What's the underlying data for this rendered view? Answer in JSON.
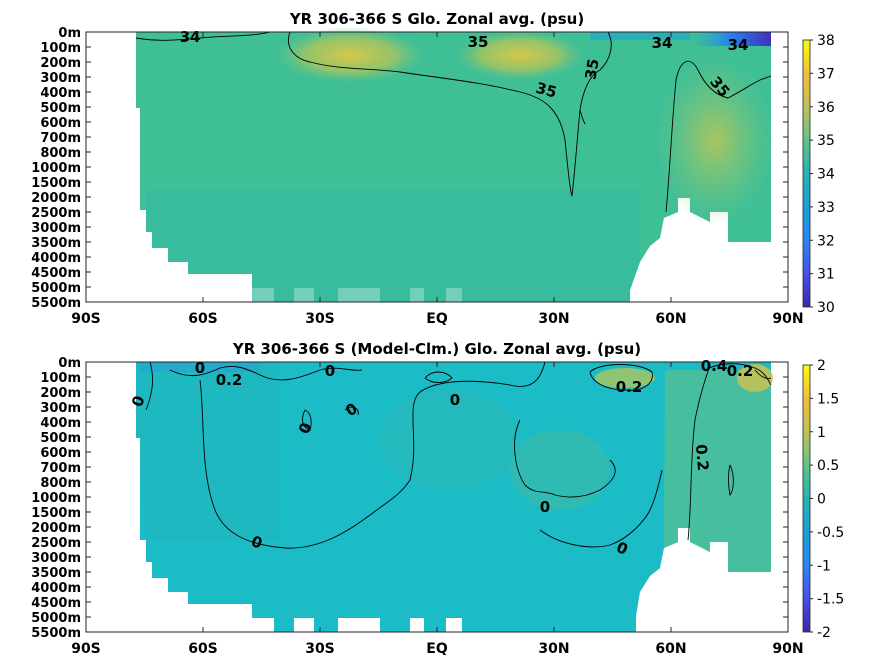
{
  "chart_data": [
    {
      "type": "heatmap",
      "title": "YR 306-366 S Glo. Zonal avg. (psu)",
      "x_ticks": [
        "90S",
        "60S",
        "30S",
        "EQ",
        "30N",
        "60N",
        "90N"
      ],
      "y_ticks": [
        "0m",
        "100m",
        "200m",
        "300m",
        "400m",
        "500m",
        "600m",
        "700m",
        "800m",
        "1000m",
        "1500m",
        "2000m",
        "2500m",
        "3000m",
        "3500m",
        "4000m",
        "4500m",
        "5000m",
        "5500m"
      ],
      "colorbar": {
        "min": 30,
        "max": 38,
        "ticks": [
          "30",
          "31",
          "32",
          "33",
          "34",
          "35",
          "36",
          "37",
          "38"
        ]
      },
      "contour_labels": [
        "34",
        "35",
        "35",
        "35",
        "35",
        "34",
        "34",
        "35"
      ],
      "colors": {
        "low": "#3e26a8",
        "mid": "#2fb5b0",
        "high": "#f9fb0e"
      }
    },
    {
      "type": "heatmap",
      "title": "YR 306-366 S (Model-Clm.) Glo. Zonal avg. (psu)",
      "x_ticks": [
        "90S",
        "60S",
        "30S",
        "EQ",
        "30N",
        "60N",
        "90N"
      ],
      "y_ticks": [
        "0m",
        "100m",
        "200m",
        "300m",
        "400m",
        "500m",
        "600m",
        "700m",
        "800m",
        "1000m",
        "1500m",
        "2000m",
        "2500m",
        "3000m",
        "3500m",
        "4000m",
        "4500m",
        "5000m",
        "5500m"
      ],
      "colorbar": {
        "min": -2,
        "max": 2,
        "ticks": [
          "-2",
          "-1.5",
          "-1",
          "-0.5",
          "0",
          "0.5",
          "1",
          "1.5",
          "2"
        ]
      },
      "contour_labels": [
        "0",
        "0.2",
        "0",
        "0",
        "0",
        "0",
        "0",
        "0",
        "0.2",
        "0.2",
        "0",
        "0.2",
        "0",
        "0.4"
      ],
      "colors": {
        "low": "#3e26a8",
        "mid": "#2fb5b0",
        "high": "#f9fb0e"
      }
    }
  ]
}
